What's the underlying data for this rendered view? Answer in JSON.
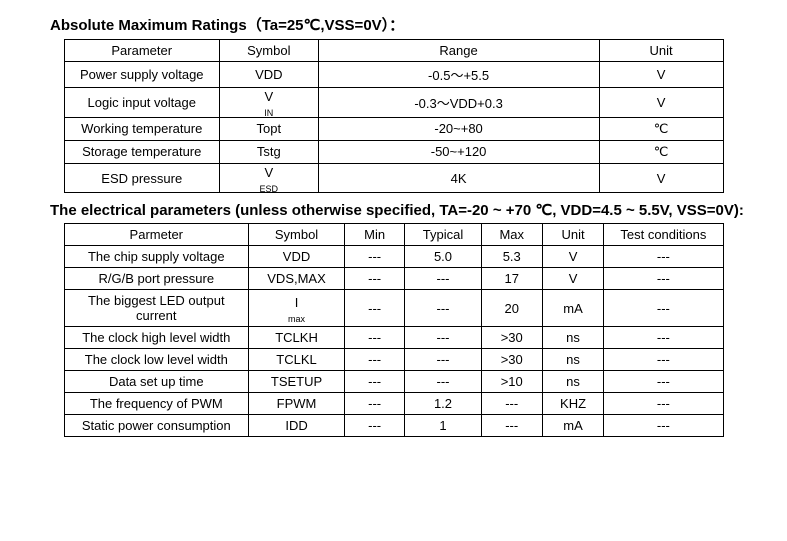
{
  "section1": {
    "title": "Absolute Maximum Ratings（Ta=25℃,VSS=0V）：",
    "headers": [
      "Parameter",
      "Symbol",
      "Range",
      "Unit"
    ],
    "rows": [
      {
        "param": "Power supply voltage",
        "symbol_main": "VDD",
        "symbol_sub": "",
        "range": "-0.5～+5.5",
        "unit": "V"
      },
      {
        "param": "Logic input voltage",
        "symbol_main": "V",
        "symbol_sub": "IN",
        "range": "-0.3～VDD+0.3",
        "unit": "V"
      },
      {
        "param": "Working temperature",
        "symbol_main": "Topt",
        "symbol_sub": "",
        "range": "-20~+80",
        "unit": "℃"
      },
      {
        "param": "Storage temperature",
        "symbol_main": "Tstg",
        "symbol_sub": "",
        "range": "-50~+120",
        "unit": "℃"
      },
      {
        "param": "ESD pressure",
        "symbol_main": "V",
        "symbol_sub": "ESD",
        "range": "4K",
        "unit": "V"
      }
    ]
  },
  "section2": {
    "title": "The electrical parameters (unless otherwise specified, TA=-20 ~ +70 ℃, VDD=4.5 ~ 5.5V, VSS=0V):",
    "headers": [
      "Parmeter",
      "Symbol",
      "Min",
      "Typical",
      "Max",
      "Unit",
      "Test conditions"
    ],
    "rows": [
      {
        "param": "The chip supply voltage",
        "symbol_main": "VDD",
        "symbol_sub": "",
        "min": "---",
        "typ": "5.0",
        "max": "5.3",
        "unit": "V",
        "tc": "---"
      },
      {
        "param": "R/G/B port pressure",
        "symbol_main": "VDS,MAX",
        "symbol_sub": "",
        "min": "---",
        "typ": "---",
        "max": "17",
        "unit": "V",
        "tc": "---"
      },
      {
        "param": "The biggest LED output current",
        "symbol_main": "I",
        "symbol_sub": "max",
        "min": "---",
        "typ": "---",
        "max": "20",
        "unit": "mA",
        "tc": "---"
      },
      {
        "param": "The clock high level width",
        "symbol_main": "TCLKH",
        "symbol_sub": "",
        "min": "---",
        "typ": "---",
        "max": ">30",
        "unit": "ns",
        "tc": "---"
      },
      {
        "param": "The clock low level width",
        "symbol_main": "TCLKL",
        "symbol_sub": "",
        "min": "---",
        "typ": "---",
        "max": ">30",
        "unit": "ns",
        "tc": "---"
      },
      {
        "param": "Data set up time",
        "symbol_main": "TSETUP",
        "symbol_sub": "",
        "min": "---",
        "typ": "---",
        "max": ">10",
        "unit": "ns",
        "tc": "---"
      },
      {
        "param": "The frequency of PWM",
        "symbol_main": "FPWM",
        "symbol_sub": "",
        "min": "---",
        "typ": "1.2",
        "max": "---",
        "unit": "KHZ",
        "tc": "---"
      },
      {
        "param": "Static power consumption",
        "symbol_main": "IDD",
        "symbol_sub": "",
        "min": "---",
        "typ": "1",
        "max": "---",
        "unit": "mA",
        "tc": "---"
      }
    ]
  }
}
